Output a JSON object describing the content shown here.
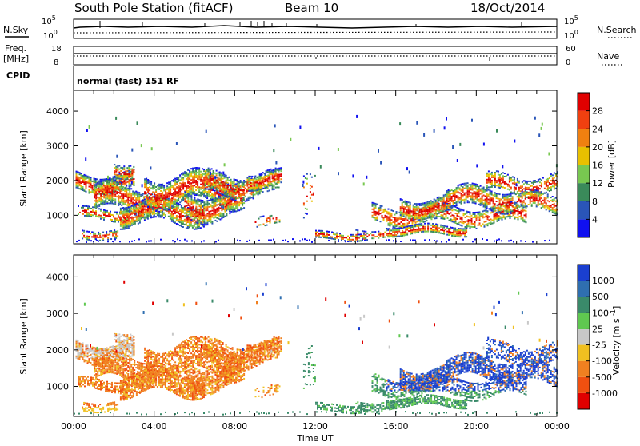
{
  "header": {
    "station": "South Pole Station (fitACF)",
    "beam": "Beam 10",
    "date": "18/Oct/2014"
  },
  "status_panels": {
    "nsky_label": "N.Sky",
    "nsearch_label": "N.Search",
    "freq_label_1": "Freq.",
    "freq_label_2": "[MHz]",
    "nave_label": "Nave",
    "cpid_label": "CPID",
    "cpid_value": "normal (fast) 151 RF",
    "noise_ticks": [
      "10^5",
      "10^0"
    ],
    "freq_ticks": [
      "18",
      "8"
    ],
    "nave_ticks": [
      "60",
      "0"
    ]
  },
  "chart_data": [
    {
      "type": "heatmap",
      "title": "",
      "xlabel": "Time UT",
      "ylabel": "Slant Range [km]",
      "x_ticks": [
        "00:00",
        "04:00",
        "08:00",
        "12:00",
        "16:00",
        "20:00",
        "00:00"
      ],
      "x_range_hours": [
        0,
        24
      ],
      "ylim": [
        180,
        4600
      ],
      "y_ticks": [
        1000,
        2000,
        3000,
        4000
      ],
      "colorbar": {
        "label": "Power [dB]",
        "ticks": [
          "4",
          "8",
          "12",
          "16",
          "20",
          "24",
          "28"
        ],
        "colors": [
          "#1010f0",
          "#2a55b8",
          "#3a8a5a",
          "#78c850",
          "#e8c000",
          "#f08010",
          "#f04010",
          "#e00000"
        ]
      }
    },
    {
      "type": "heatmap",
      "title": "",
      "xlabel": "Time UT",
      "ylabel": "Slant Range [km]",
      "x_ticks": [
        "00:00",
        "04:00",
        "08:00",
        "12:00",
        "16:00",
        "20:00",
        "00:00"
      ],
      "x_range_hours": [
        0,
        24
      ],
      "ylim": [
        180,
        4600
      ],
      "y_ticks": [
        1000,
        2000,
        3000,
        4000
      ],
      "colorbar": {
        "label": "Velocity [m s^-1]",
        "ticks": [
          "1000",
          "500",
          "100",
          "25",
          "-25",
          "-100",
          "-500",
          "-1000"
        ],
        "colors": [
          "#1a3fd0",
          "#2f6fb0",
          "#3a8a6a",
          "#5fc850",
          "#c8c8c8",
          "#f0c020",
          "#f08020",
          "#f05010",
          "#e00000"
        ]
      }
    }
  ]
}
